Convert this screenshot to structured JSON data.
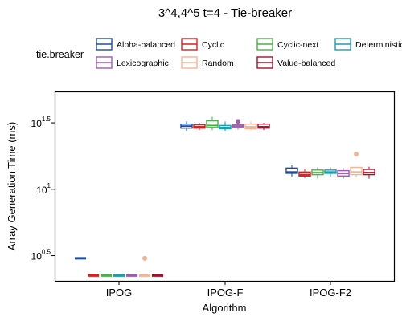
{
  "chart_data": {
    "type": "boxplot",
    "title": "3^4,4^5 t=4 - Tie-breaker",
    "xlabel": "Algorithm",
    "ylabel": "Array Generation Time (ms)",
    "y_scale": "log10",
    "ylim": [
      0.31,
      1.73
    ],
    "y_ticks": [
      {
        "exp": 0.5,
        "base": "10",
        "sup": "0.5"
      },
      {
        "exp": 1.0,
        "base": "10",
        "sup": "1"
      },
      {
        "exp": 1.5,
        "base": "10",
        "sup": "1.5"
      }
    ],
    "categories": [
      "IPOG",
      "IPOG-F",
      "IPOG-F2"
    ],
    "legend": {
      "title": "tie.breaker",
      "position": "top",
      "entries": [
        "Alpha-balanced",
        "Cyclic",
        "Cyclic-next",
        "Deterministic",
        "Lexicographic",
        "Random",
        "Value-balanced"
      ]
    },
    "series_colors": [
      "#1f4e9c",
      "#e41a1c",
      "#4daf4a",
      "#1a9fb0",
      "#a05ab0",
      "#f4b494",
      "#a50f2b"
    ],
    "series": [
      {
        "name": "Alpha-balanced",
        "boxes": [
          {
            "whislo": 0.48,
            "q1": 0.48,
            "med": 0.48,
            "q3": 0.48,
            "whishi": 0.48,
            "outliers": []
          },
          {
            "whislo": 1.44,
            "q1": 1.46,
            "med": 1.475,
            "q3": 1.49,
            "whishi": 1.51,
            "outliers": []
          },
          {
            "whislo": 1.095,
            "q1": 1.12,
            "med": 1.13,
            "q3": 1.16,
            "whishi": 1.18,
            "outliers": []
          }
        ]
      },
      {
        "name": "Cyclic",
        "boxes": [
          {
            "whislo": 0.35,
            "q1": 0.35,
            "med": 0.35,
            "q3": 0.35,
            "whishi": 0.35,
            "outliers": []
          },
          {
            "whislo": 1.445,
            "q1": 1.46,
            "med": 1.47,
            "q3": 1.485,
            "whishi": 1.5,
            "outliers": []
          },
          {
            "whislo": 1.085,
            "q1": 1.1,
            "med": 1.11,
            "q3": 1.13,
            "whishi": 1.15,
            "outliers": []
          }
        ]
      },
      {
        "name": "Cyclic-next",
        "boxes": [
          {
            "whislo": 0.35,
            "q1": 0.35,
            "med": 0.35,
            "q3": 0.35,
            "whishi": 0.35,
            "outliers": []
          },
          {
            "whislo": 1.445,
            "q1": 1.465,
            "med": 1.48,
            "q3": 1.515,
            "whishi": 1.545,
            "outliers": []
          },
          {
            "whislo": 1.08,
            "q1": 1.11,
            "med": 1.125,
            "q3": 1.145,
            "whishi": 1.165,
            "outliers": []
          }
        ]
      },
      {
        "name": "Deterministic",
        "boxes": [
          {
            "whislo": 0.35,
            "q1": 0.35,
            "med": 0.35,
            "q3": 0.35,
            "whishi": 0.35,
            "outliers": []
          },
          {
            "whislo": 1.44,
            "q1": 1.455,
            "med": 1.465,
            "q3": 1.48,
            "whishi": 1.51,
            "outliers": []
          },
          {
            "whislo": 1.095,
            "q1": 1.12,
            "med": 1.13,
            "q3": 1.145,
            "whishi": 1.165,
            "outliers": []
          }
        ]
      },
      {
        "name": "Lexicographic",
        "boxes": [
          {
            "whislo": 0.35,
            "q1": 0.35,
            "med": 0.35,
            "q3": 0.35,
            "whishi": 0.35,
            "outliers": []
          },
          {
            "whislo": 1.45,
            "q1": 1.465,
            "med": 1.475,
            "q3": 1.485,
            "whishi": 1.5,
            "outliers": [
              1.51
            ]
          },
          {
            "whislo": 1.08,
            "q1": 1.1,
            "med": 1.12,
            "q3": 1.14,
            "whishi": 1.16,
            "outliers": []
          }
        ]
      },
      {
        "name": "Random",
        "boxes": [
          {
            "whislo": 0.35,
            "q1": 0.35,
            "med": 0.35,
            "q3": 0.35,
            "whishi": 0.35,
            "outliers": [
              0.48
            ]
          },
          {
            "whislo": 1.445,
            "q1": 1.455,
            "med": 1.47,
            "q3": 1.49,
            "whishi": 1.51,
            "outliers": []
          },
          {
            "whislo": 1.09,
            "q1": 1.11,
            "med": 1.13,
            "q3": 1.165,
            "whishi": 1.17,
            "outliers": [
              1.265
            ]
          }
        ]
      },
      {
        "name": "Value-balanced",
        "boxes": [
          {
            "whislo": 0.35,
            "q1": 0.35,
            "med": 0.35,
            "q3": 0.35,
            "whishi": 0.35,
            "outliers": []
          },
          {
            "whislo": 1.445,
            "q1": 1.46,
            "med": 1.47,
            "q3": 1.49,
            "whishi": 1.5,
            "outliers": []
          },
          {
            "whislo": 1.08,
            "q1": 1.11,
            "med": 1.125,
            "q3": 1.15,
            "whishi": 1.17,
            "outliers": []
          }
        ]
      }
    ]
  }
}
